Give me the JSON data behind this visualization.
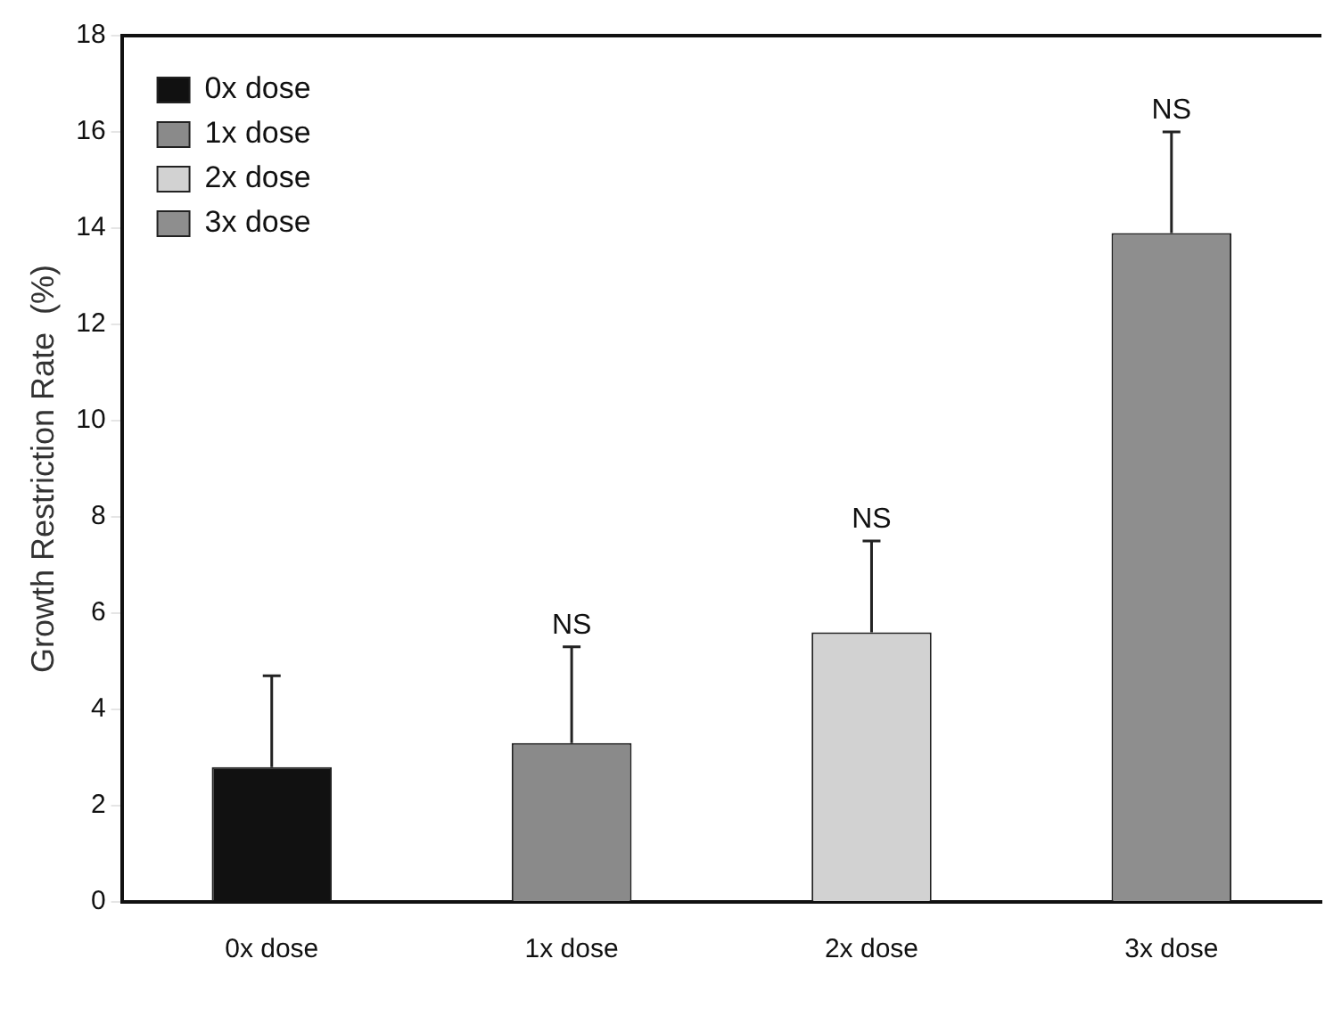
{
  "chart_data": {
    "type": "bar",
    "ylabel": "Growth Restriction Rate  (%)",
    "categories": [
      "0x dose",
      "1x dose",
      "2x dose",
      "3x dose"
    ],
    "series": [
      {
        "name": "0x dose",
        "color": "#111111",
        "values": [
          2.8,
          null,
          null,
          null
        ],
        "errors": [
          [
            2.8,
            4.7
          ],
          null,
          null,
          null
        ]
      },
      {
        "name": "1x dose",
        "color": "#8a8a8a",
        "values": [
          null,
          3.3,
          null,
          null
        ],
        "errors": [
          null,
          [
            3.3,
            5.3
          ],
          null,
          null
        ]
      },
      {
        "name": "2x dose",
        "color": "#d2d2d2",
        "values": [
          null,
          null,
          5.6,
          null
        ],
        "errors": [
          null,
          null,
          [
            5.6,
            7.5
          ],
          null
        ]
      },
      {
        "name": "3x dose",
        "color": "#8e8e8e",
        "values": [
          null,
          null,
          null,
          13.9
        ],
        "errors": [
          null,
          null,
          null,
          [
            13.9,
            16.0
          ]
        ]
      }
    ],
    "ylim": [
      0,
      18
    ],
    "yticks": [
      0,
      2,
      4,
      6,
      8,
      10,
      12,
      14,
      16,
      18
    ],
    "grid": false,
    "legend": "top left",
    "annotations": [
      {
        "text": "NS",
        "x": "1x dose",
        "y": 5.3
      },
      {
        "text": "NS",
        "x": "2x dose",
        "y": 7.5
      },
      {
        "text": "NS",
        "x": "3x dose",
        "y": 16.0
      }
    ]
  }
}
